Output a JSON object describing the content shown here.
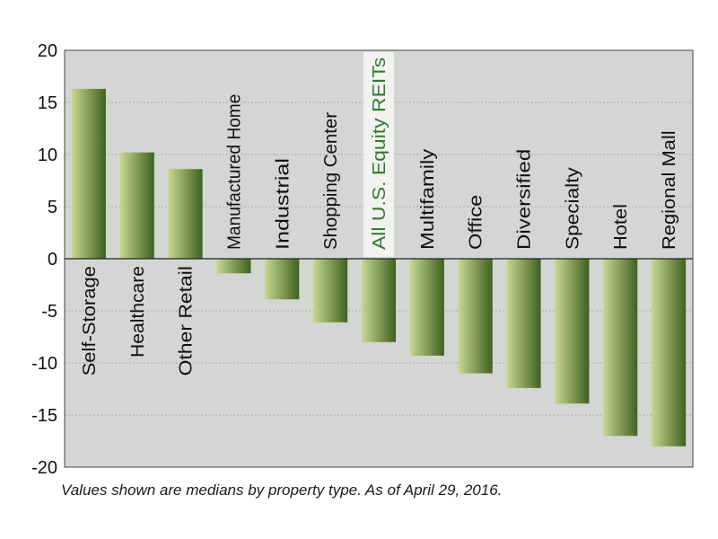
{
  "chart_data": {
    "type": "bar",
    "categories": [
      "Self-Storage",
      "Healthcare",
      "Other Retail",
      "Manufactured Home",
      "Industrial",
      "Shopping Center",
      "All U.S. Equity REITs",
      "Multifamily",
      "Office",
      "Diversified",
      "Specialty",
      "Hotel",
      "Regional Mall"
    ],
    "values": [
      16.3,
      10.2,
      8.6,
      -1.4,
      -3.9,
      -6.1,
      -8.0,
      -9.3,
      -11.0,
      -12.4,
      -13.9,
      -17.0,
      -18.0
    ],
    "highlight_category": "All U.S. Equity REITs",
    "ylim": [
      -20,
      20
    ],
    "yticks": [
      -20,
      -15,
      -10,
      -5,
      0,
      5,
      10,
      15,
      20
    ],
    "grid": true,
    "title": "",
    "xlabel": "",
    "ylabel": ""
  },
  "footnote": "Values shown are medians by property type. As of April 29, 2016.",
  "colors": {
    "plot_background": "#d3d6d2",
    "bar_light": "#c7d88f",
    "bar_dark": "#3f6120",
    "highlight_text": "#2f7a2f",
    "highlight_background": "#f2f3f1",
    "label_text": "#111111",
    "gridline": "#a9aca8"
  }
}
